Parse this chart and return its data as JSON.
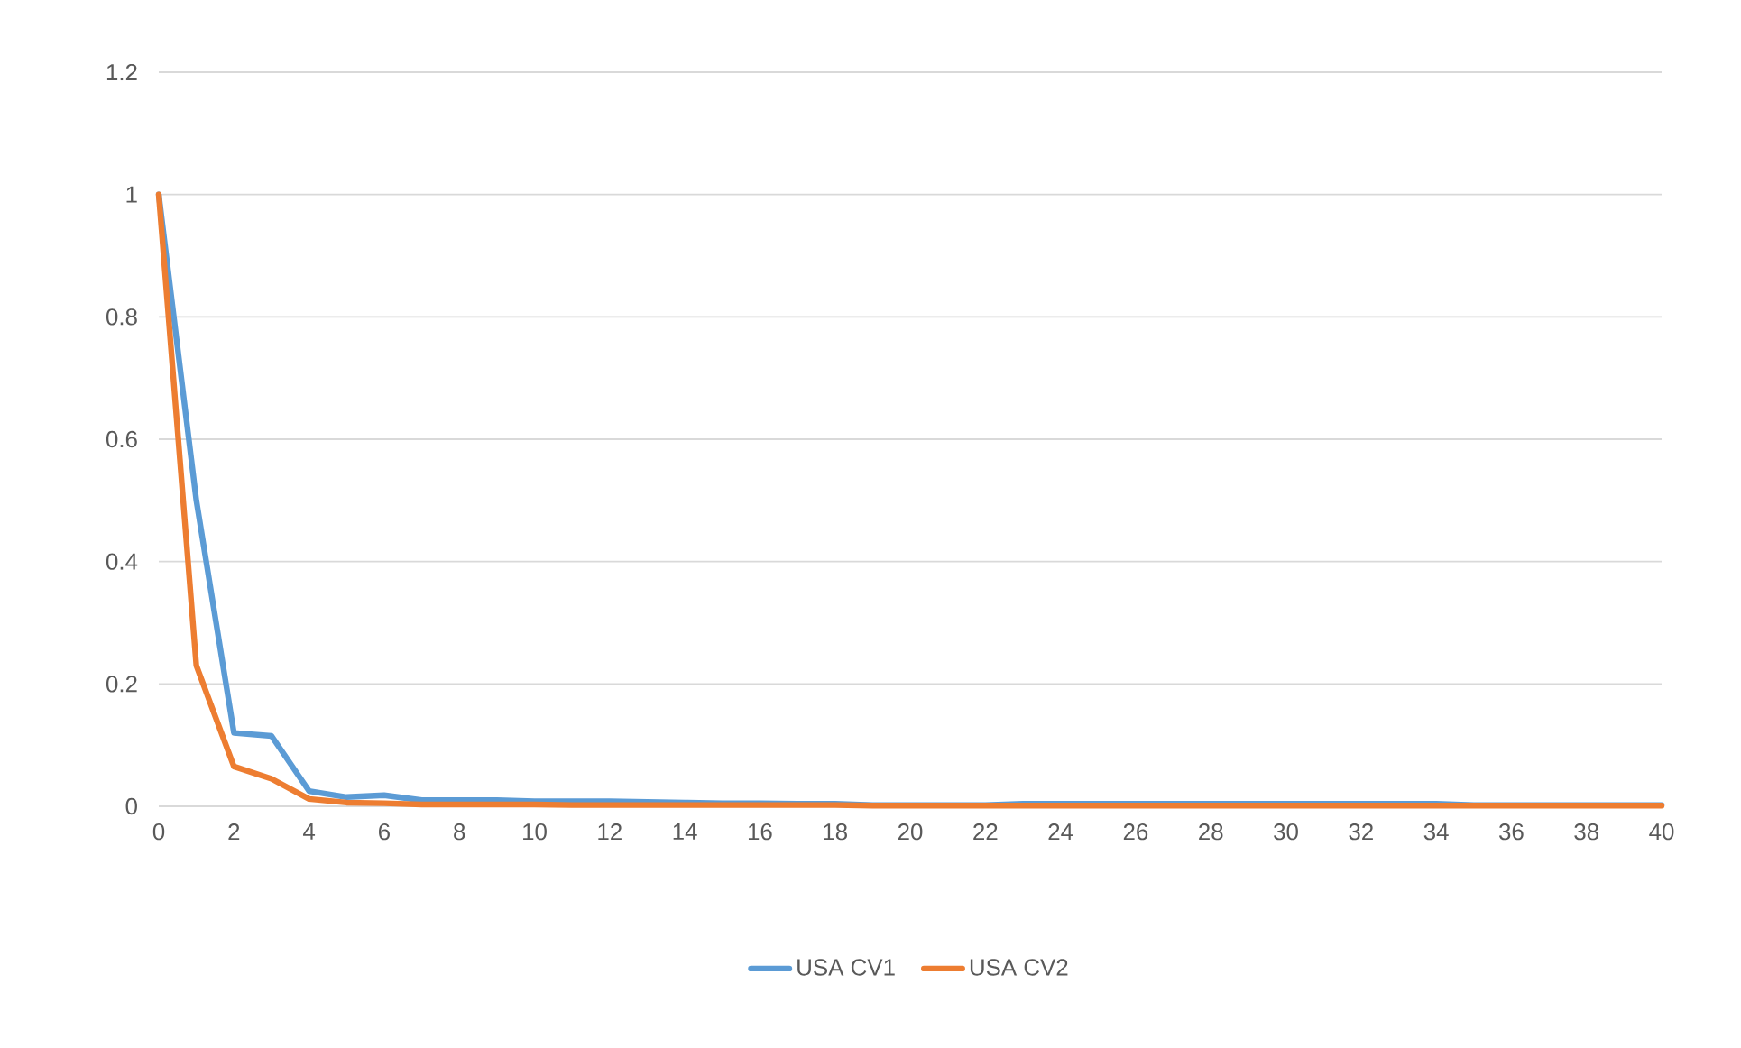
{
  "chart_data": {
    "type": "line",
    "x": [
      0,
      1,
      2,
      3,
      4,
      5,
      6,
      7,
      8,
      9,
      10,
      11,
      12,
      13,
      14,
      15,
      16,
      17,
      18,
      19,
      20,
      21,
      22,
      23,
      24,
      25,
      26,
      27,
      28,
      29,
      30,
      31,
      32,
      33,
      34,
      35,
      36,
      37,
      38,
      39,
      40
    ],
    "series": [
      {
        "name": "USA CV1",
        "color": "#5b9bd5",
        "values": [
          1,
          0.5,
          0.12,
          0.115,
          0.025,
          0.015,
          0.018,
          0.01,
          0.01,
          0.01,
          0.008,
          0.008,
          0.008,
          0.007,
          0.006,
          0.005,
          0.005,
          0.004,
          0.004,
          0.002,
          0.002,
          0.002,
          0.002,
          0.004,
          0.004,
          0.004,
          0.004,
          0.004,
          0.004,
          0.004,
          0.004,
          0.004,
          0.004,
          0.004,
          0.004,
          0.002,
          0.002,
          0.002,
          0.002,
          0.002,
          0.002
        ]
      },
      {
        "name": "USA CV2",
        "color": "#ed7d31",
        "values": [
          1,
          0.23,
          0.065,
          0.045,
          0.012,
          0.006,
          0.005,
          0.003,
          0.003,
          0.003,
          0.003,
          0.002,
          0.002,
          0.002,
          0.002,
          0.002,
          0.002,
          0.002,
          0.002,
          0.001,
          0.001,
          0.001,
          0.001,
          0.001,
          0.001,
          0.001,
          0.001,
          0.001,
          0.001,
          0.001,
          0.001,
          0.001,
          0.001,
          0.001,
          0.001,
          0.001,
          0.001,
          0.001,
          0.001,
          0.001,
          0.001
        ]
      }
    ],
    "xlim": [
      0,
      40
    ],
    "xticks": [
      0,
      2,
      4,
      6,
      8,
      10,
      12,
      14,
      16,
      18,
      20,
      22,
      24,
      26,
      28,
      30,
      32,
      34,
      36,
      38,
      40
    ],
    "ylim": [
      0,
      1.2
    ],
    "yticks": [
      0,
      0.2,
      0.4,
      0.6,
      0.8,
      1,
      1.2
    ],
    "grid": "y",
    "legend": "bottom",
    "marker": "none",
    "line_style": "solid"
  }
}
